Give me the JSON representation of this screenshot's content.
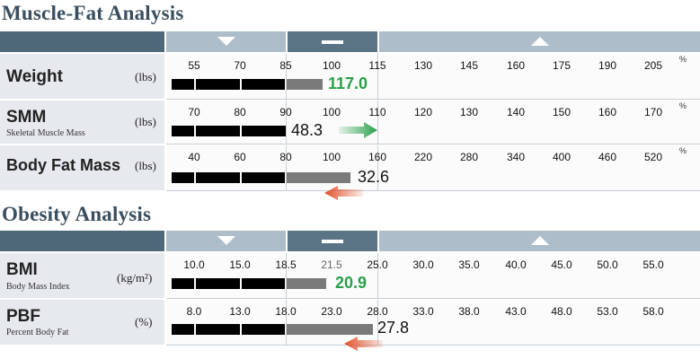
{
  "muscle_fat": {
    "title": "Muscle-Fat Analysis",
    "rows": [
      {
        "label": "Weight",
        "sublabel": "",
        "unit": "(lbs)",
        "ticks": [
          "55",
          "70",
          "85",
          "100",
          "115",
          "130",
          "145",
          "160",
          "175",
          "190",
          "205"
        ],
        "percent_sign": "%",
        "value": "117.0",
        "value_color": "green",
        "arrow": "none"
      },
      {
        "label": "SMM",
        "sublabel": "Skeletal Muscle Mass",
        "unit": "(lbs)",
        "ticks": [
          "70",
          "80",
          "90",
          "100",
          "110",
          "120",
          "130",
          "140",
          "150",
          "160",
          "170"
        ],
        "percent_sign": "%",
        "value": "48.3",
        "value_color": "black",
        "arrow": "right-green"
      },
      {
        "label": "Body Fat Mass",
        "sublabel": "",
        "unit": "(lbs)",
        "ticks": [
          "40",
          "60",
          "80",
          "100",
          "160",
          "220",
          "280",
          "340",
          "400",
          "460",
          "520"
        ],
        "percent_sign": "%",
        "value": "32.6",
        "value_color": "black",
        "arrow": "left-red"
      }
    ]
  },
  "obesity": {
    "title": "Obesity Analysis",
    "rows": [
      {
        "label": "BMI",
        "sublabel": "Body Mass Index",
        "unit": "(kg/m²)",
        "ticks": [
          "10.0",
          "15.0",
          "18.5",
          "21.5",
          "25.0",
          "30.0",
          "35.0",
          "40.0",
          "45.0",
          "50.0",
          "55.0"
        ],
        "percent_sign": "",
        "value": "20.9",
        "value_color": "green",
        "arrow": "none"
      },
      {
        "label": "PBF",
        "sublabel": "Percent Body Fat",
        "unit": "(%)",
        "ticks": [
          "8.0",
          "13.0",
          "18.0",
          "23.0",
          "28.0",
          "33.0",
          "38.0",
          "43.0",
          "48.0",
          "53.0",
          "58.0"
        ],
        "percent_sign": "",
        "value": "27.8",
        "value_color": "black",
        "arrow": "left-red"
      }
    ]
  },
  "colors": {
    "title": "#3a4e5e",
    "header_dark": "#4e6779",
    "header_light": "#adbdc9",
    "bar_black": "#000000",
    "bar_gray": "#7a7a7a",
    "green_value": "#2aa04a",
    "arrow_green": "#2aa04a",
    "arrow_red": "#e0502a"
  },
  "icons": {
    "under_range": "triangle-down-icon",
    "normal_range": "dash-icon",
    "over_range": "triangle-up-icon"
  }
}
